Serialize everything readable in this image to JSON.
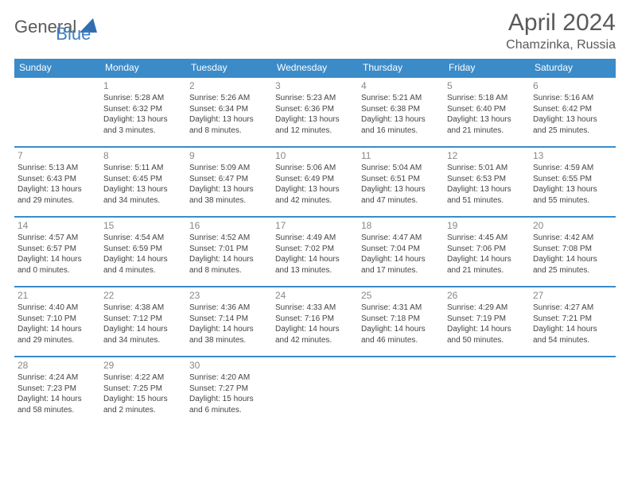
{
  "brand": {
    "part1": "General",
    "part2": "Blue"
  },
  "title": "April 2024",
  "subtitle": "Chamzinka, Russia",
  "colors": {
    "accent": "#3b8bc9",
    "text": "#5a5a5a",
    "cell_text": "#444444"
  },
  "day_headers": [
    "Sunday",
    "Monday",
    "Tuesday",
    "Wednesday",
    "Thursday",
    "Friday",
    "Saturday"
  ],
  "weeks": [
    [
      null,
      {
        "day": "1",
        "sunrise": "5:28 AM",
        "sunset": "6:32 PM",
        "daylight": "13 hours and 3 minutes."
      },
      {
        "day": "2",
        "sunrise": "5:26 AM",
        "sunset": "6:34 PM",
        "daylight": "13 hours and 8 minutes."
      },
      {
        "day": "3",
        "sunrise": "5:23 AM",
        "sunset": "6:36 PM",
        "daylight": "13 hours and 12 minutes."
      },
      {
        "day": "4",
        "sunrise": "5:21 AM",
        "sunset": "6:38 PM",
        "daylight": "13 hours and 16 minutes."
      },
      {
        "day": "5",
        "sunrise": "5:18 AM",
        "sunset": "6:40 PM",
        "daylight": "13 hours and 21 minutes."
      },
      {
        "day": "6",
        "sunrise": "5:16 AM",
        "sunset": "6:42 PM",
        "daylight": "13 hours and 25 minutes."
      }
    ],
    [
      {
        "day": "7",
        "sunrise": "5:13 AM",
        "sunset": "6:43 PM",
        "daylight": "13 hours and 29 minutes."
      },
      {
        "day": "8",
        "sunrise": "5:11 AM",
        "sunset": "6:45 PM",
        "daylight": "13 hours and 34 minutes."
      },
      {
        "day": "9",
        "sunrise": "5:09 AM",
        "sunset": "6:47 PM",
        "daylight": "13 hours and 38 minutes."
      },
      {
        "day": "10",
        "sunrise": "5:06 AM",
        "sunset": "6:49 PM",
        "daylight": "13 hours and 42 minutes."
      },
      {
        "day": "11",
        "sunrise": "5:04 AM",
        "sunset": "6:51 PM",
        "daylight": "13 hours and 47 minutes."
      },
      {
        "day": "12",
        "sunrise": "5:01 AM",
        "sunset": "6:53 PM",
        "daylight": "13 hours and 51 minutes."
      },
      {
        "day": "13",
        "sunrise": "4:59 AM",
        "sunset": "6:55 PM",
        "daylight": "13 hours and 55 minutes."
      }
    ],
    [
      {
        "day": "14",
        "sunrise": "4:57 AM",
        "sunset": "6:57 PM",
        "daylight": "14 hours and 0 minutes."
      },
      {
        "day": "15",
        "sunrise": "4:54 AM",
        "sunset": "6:59 PM",
        "daylight": "14 hours and 4 minutes."
      },
      {
        "day": "16",
        "sunrise": "4:52 AM",
        "sunset": "7:01 PM",
        "daylight": "14 hours and 8 minutes."
      },
      {
        "day": "17",
        "sunrise": "4:49 AM",
        "sunset": "7:02 PM",
        "daylight": "14 hours and 13 minutes."
      },
      {
        "day": "18",
        "sunrise": "4:47 AM",
        "sunset": "7:04 PM",
        "daylight": "14 hours and 17 minutes."
      },
      {
        "day": "19",
        "sunrise": "4:45 AM",
        "sunset": "7:06 PM",
        "daylight": "14 hours and 21 minutes."
      },
      {
        "day": "20",
        "sunrise": "4:42 AM",
        "sunset": "7:08 PM",
        "daylight": "14 hours and 25 minutes."
      }
    ],
    [
      {
        "day": "21",
        "sunrise": "4:40 AM",
        "sunset": "7:10 PM",
        "daylight": "14 hours and 29 minutes."
      },
      {
        "day": "22",
        "sunrise": "4:38 AM",
        "sunset": "7:12 PM",
        "daylight": "14 hours and 34 minutes."
      },
      {
        "day": "23",
        "sunrise": "4:36 AM",
        "sunset": "7:14 PM",
        "daylight": "14 hours and 38 minutes."
      },
      {
        "day": "24",
        "sunrise": "4:33 AM",
        "sunset": "7:16 PM",
        "daylight": "14 hours and 42 minutes."
      },
      {
        "day": "25",
        "sunrise": "4:31 AM",
        "sunset": "7:18 PM",
        "daylight": "14 hours and 46 minutes."
      },
      {
        "day": "26",
        "sunrise": "4:29 AM",
        "sunset": "7:19 PM",
        "daylight": "14 hours and 50 minutes."
      },
      {
        "day": "27",
        "sunrise": "4:27 AM",
        "sunset": "7:21 PM",
        "daylight": "14 hours and 54 minutes."
      }
    ],
    [
      {
        "day": "28",
        "sunrise": "4:24 AM",
        "sunset": "7:23 PM",
        "daylight": "14 hours and 58 minutes."
      },
      {
        "day": "29",
        "sunrise": "4:22 AM",
        "sunset": "7:25 PM",
        "daylight": "15 hours and 2 minutes."
      },
      {
        "day": "30",
        "sunrise": "4:20 AM",
        "sunset": "7:27 PM",
        "daylight": "15 hours and 6 minutes."
      },
      null,
      null,
      null,
      null
    ]
  ],
  "labels": {
    "sunrise": "Sunrise:",
    "sunset": "Sunset:",
    "daylight": "Daylight:"
  }
}
